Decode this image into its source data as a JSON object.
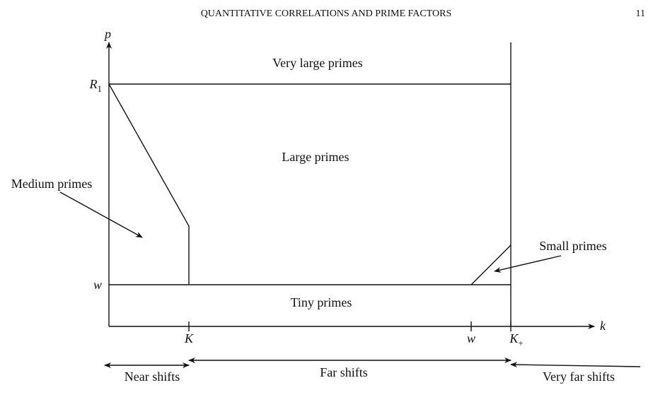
{
  "header": {
    "title": "QUANTITATIVE CORRELATIONS AND PRIME FACTORS",
    "page": "11"
  },
  "axes": {
    "y_label": "p",
    "x_label": "k",
    "y_ticks": [
      {
        "base": "R",
        "sub": "1"
      },
      {
        "base": "w",
        "sub": ""
      }
    ],
    "x_ticks": [
      {
        "base": "K",
        "sub": ""
      },
      {
        "base": "w",
        "sub": ""
      },
      {
        "base": "K",
        "sub": "+"
      }
    ]
  },
  "regions": {
    "very_large": "Very large primes",
    "large": "Large primes",
    "medium": "Medium primes",
    "small": "Small primes",
    "tiny": "Tiny primes"
  },
  "shifts": {
    "near": "Near shifts",
    "far": "Far shifts",
    "very_far": "Very far shifts"
  }
}
